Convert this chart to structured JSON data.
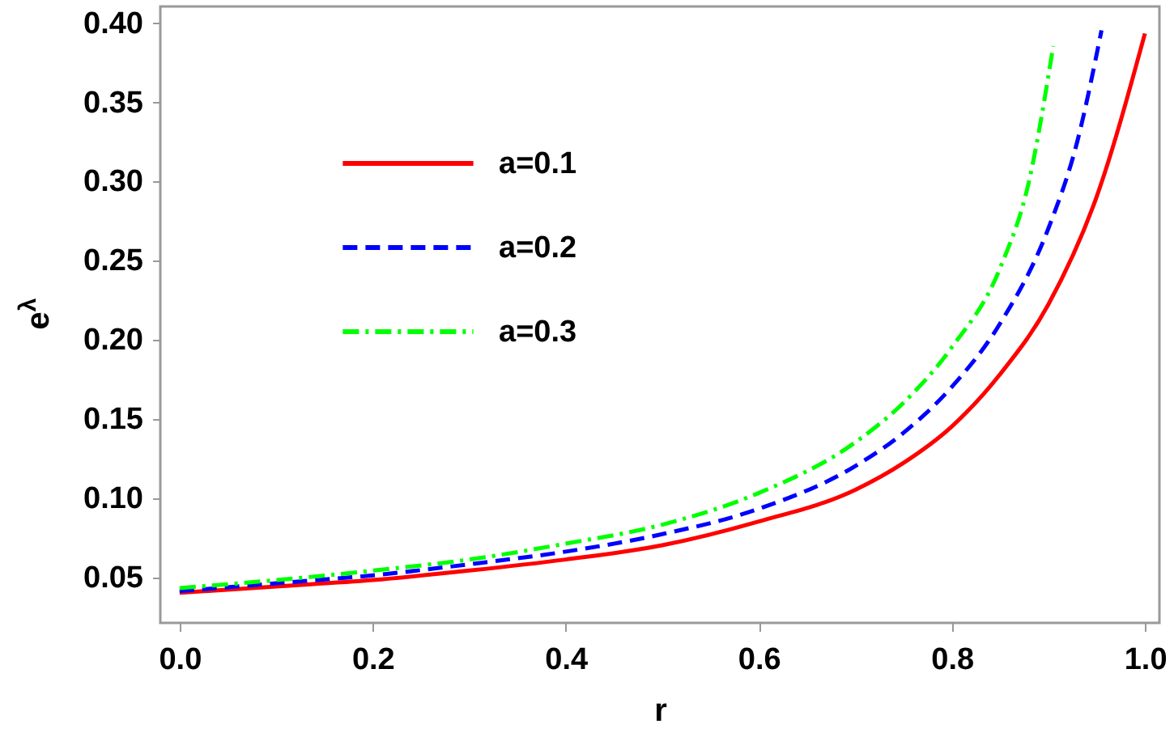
{
  "chart_data": {
    "type": "line",
    "xlabel": "r",
    "ylabel": "e$^{λ}$",
    "x": [
      0,
      0.1,
      0.2,
      0.3,
      0.4,
      0.5,
      0.6,
      0.7,
      0.75,
      0.8,
      0.85,
      0.9,
      0.95,
      1.0
    ],
    "series": [
      {
        "name": "a=0.1",
        "color": "#ff0000",
        "line_style": "solid",
        "values": [
          0.04,
          0.044,
          0.048,
          0.054,
          0.061,
          0.07,
          0.085,
          0.105,
          0.122,
          0.145,
          0.178,
          0.222,
          0.29,
          0.393
        ]
      },
      {
        "name": "a=0.2",
        "color": "#0000ff",
        "line_style": "dashed",
        "x": [
          0,
          0.1,
          0.2,
          0.3,
          0.4,
          0.5,
          0.6,
          0.7,
          0.75,
          0.8,
          0.85,
          0.9,
          0.93,
          0.955
        ],
        "values": [
          0.041,
          0.046,
          0.051,
          0.058,
          0.066,
          0.077,
          0.093,
          0.12,
          0.141,
          0.17,
          0.21,
          0.27,
          0.325,
          0.395
        ]
      },
      {
        "name": "a=0.3",
        "color": "#00ff00",
        "line_style": "dashdot",
        "x": [
          0,
          0.1,
          0.2,
          0.3,
          0.4,
          0.5,
          0.6,
          0.7,
          0.75,
          0.8,
          0.85,
          0.88,
          0.905
        ],
        "values": [
          0.043,
          0.048,
          0.054,
          0.061,
          0.071,
          0.083,
          0.103,
          0.135,
          0.16,
          0.195,
          0.245,
          0.3,
          0.385
        ]
      }
    ],
    "xlim": [
      -0.02,
      1.015
    ],
    "ylim": [
      0.021,
      0.41
    ],
    "xticks": [
      {
        "value": 0,
        "label": "0.0"
      },
      0.2,
      0.4,
      0.6,
      0.8,
      {
        "value": 1,
        "label": "1.0"
      }
    ],
    "yticks": [
      0.05,
      {
        "value": 0.1,
        "label": "0.10"
      },
      0.15,
      {
        "value": 0.2,
        "label": "0.20"
      },
      0.25,
      {
        "value": 0.3,
        "label": "0.30"
      },
      0.35,
      {
        "value": 0.4,
        "label": "0.40"
      }
    ],
    "grid": false,
    "legend": "top left",
    "marker": "none"
  }
}
